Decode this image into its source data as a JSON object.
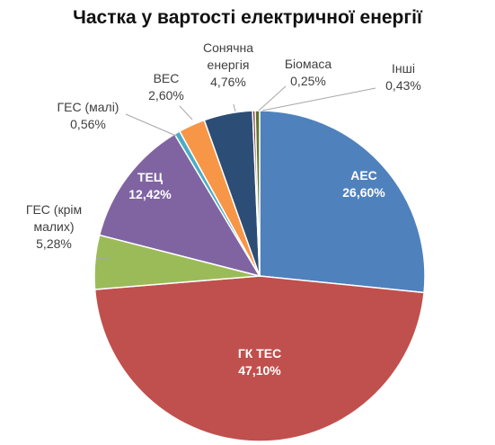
{
  "chart_data": {
    "type": "pie",
    "title": "Частка у вартості електричної енергії",
    "slices": [
      {
        "label": "АЕС",
        "lines": [
          "АЕС"
        ],
        "value": 26.6,
        "value_label": "26,60%",
        "color": "#4F81BD",
        "label_inside": true
      },
      {
        "label": "ГК ТЕС",
        "lines": [
          "ГК ТЕС"
        ],
        "value": 47.1,
        "value_label": "47,10%",
        "color": "#C0504D",
        "label_inside": true
      },
      {
        "label": "ГЕС (крім малих)",
        "lines": [
          "ГЕС (крім",
          "малих)"
        ],
        "value": 5.28,
        "value_label": "5,28%",
        "color": "#9BBB59",
        "label_inside": false
      },
      {
        "label": "ТЕЦ",
        "lines": [
          "ТЕЦ"
        ],
        "value": 12.42,
        "value_label": "12,42%",
        "color": "#8064A2",
        "label_inside": true
      },
      {
        "label": "ГЕС (малі)",
        "lines": [
          "ГЕС (малі)"
        ],
        "value": 0.56,
        "value_label": "0,56%",
        "color": "#4BACC6",
        "label_inside": false
      },
      {
        "label": "ВЕС",
        "lines": [
          "ВЕС"
        ],
        "value": 2.6,
        "value_label": "2,60%",
        "color": "#F79646",
        "label_inside": false
      },
      {
        "label": "Сонячна енергія",
        "lines": [
          "Сонячна",
          "енергія"
        ],
        "value": 4.76,
        "value_label": "4,76%",
        "color": "#2C4D75",
        "label_inside": false
      },
      {
        "label": "Біомаса",
        "lines": [
          "Біомаса"
        ],
        "value": 0.25,
        "value_label": "0,25%",
        "color": "#772C2A",
        "label_inside": false
      },
      {
        "label": "Інші",
        "lines": [
          "Інші"
        ],
        "value": 0.43,
        "value_label": "0,43%",
        "color": "#5F7530",
        "label_inside": false
      }
    ],
    "legend": "none"
  }
}
